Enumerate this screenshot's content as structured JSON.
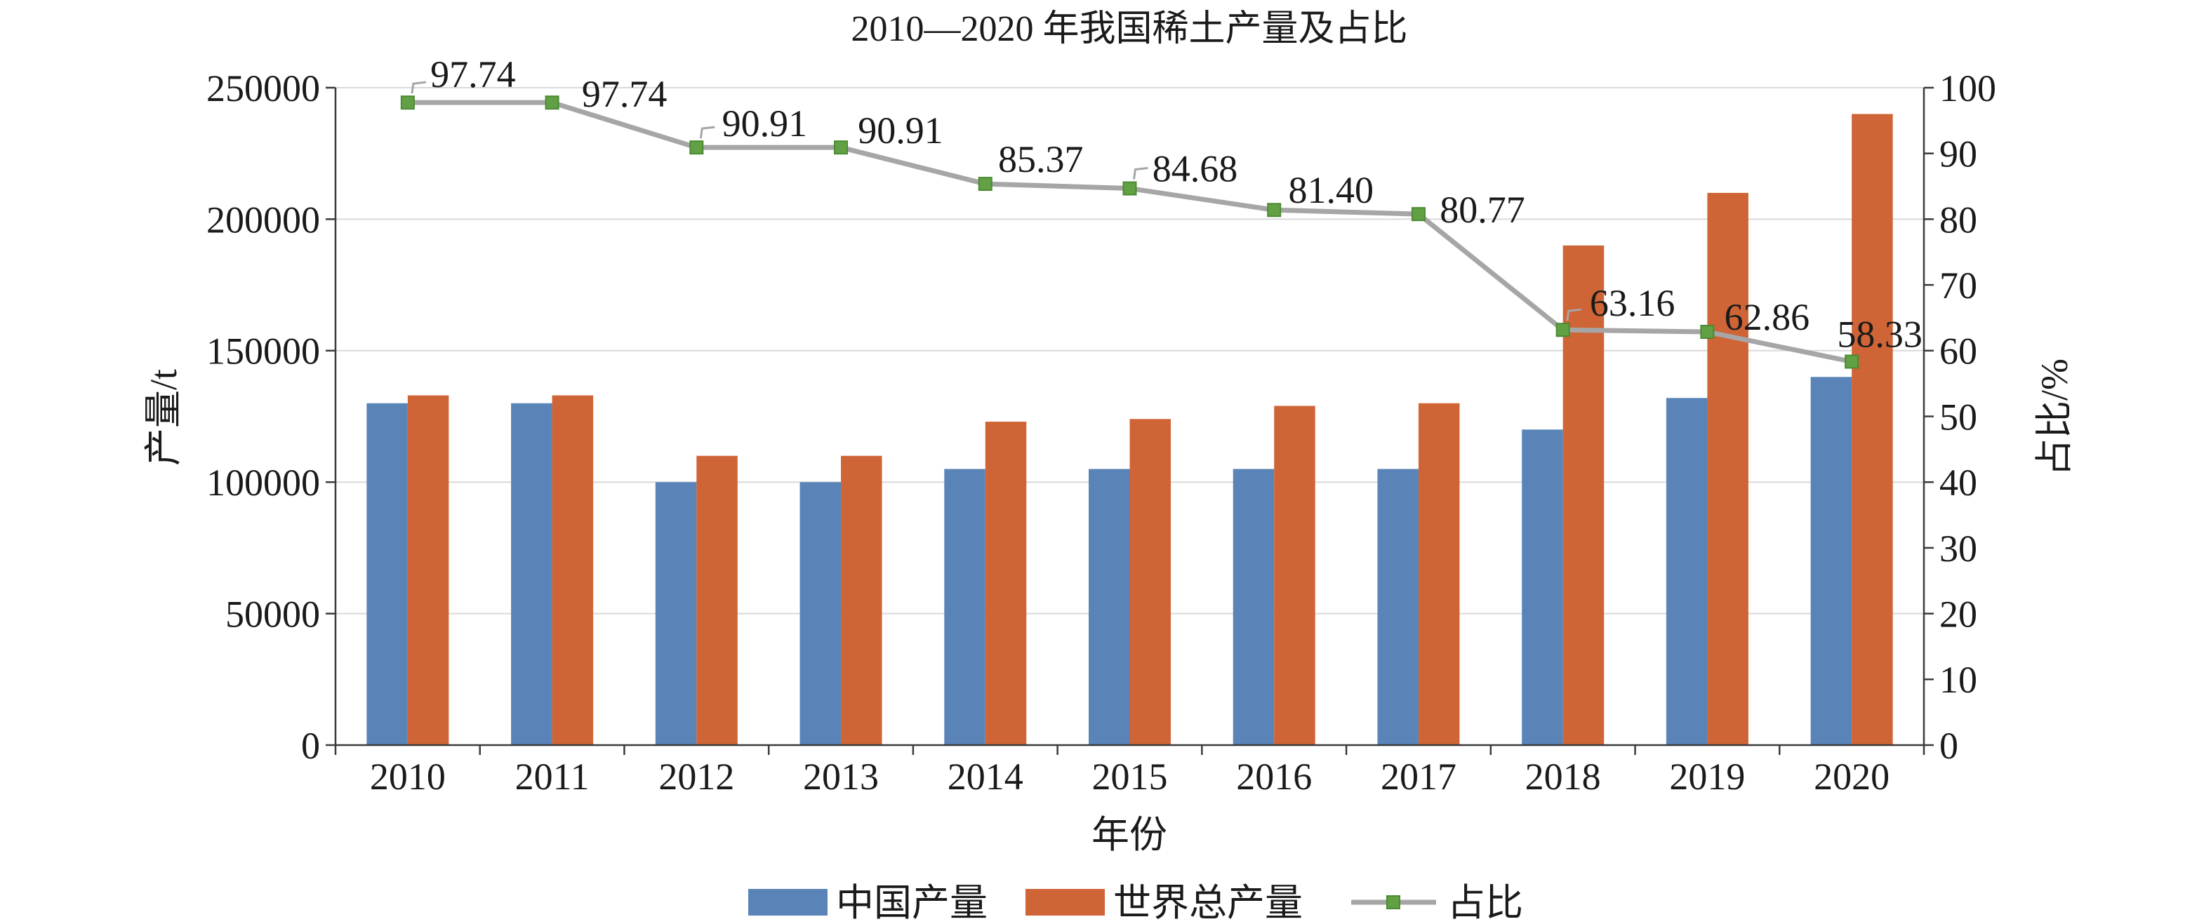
{
  "chart_data": {
    "type": "bar",
    "title": "2010—2020 年我国稀土产量及占比",
    "xlabel": "年份",
    "ylabel": "产量/t",
    "y2label": "占比/%",
    "categories": [
      "2010",
      "2011",
      "2012",
      "2013",
      "2014",
      "2015",
      "2016",
      "2017",
      "2018",
      "2019",
      "2020"
    ],
    "ylim": [
      0,
      250000
    ],
    "yticks": [
      0,
      50000,
      100000,
      150000,
      200000,
      250000
    ],
    "y2lim": [
      0,
      100
    ],
    "y2ticks": [
      0,
      10,
      20,
      30,
      40,
      50,
      60,
      70,
      80,
      90,
      100
    ],
    "grid": true,
    "legend": "bottom",
    "series": [
      {
        "name": "中国产量",
        "type": "bar",
        "axis": "left",
        "color": "#5a84b8",
        "values": [
          130000,
          130000,
          100000,
          100000,
          105000,
          105000,
          105000,
          105000,
          120000,
          132000,
          140000
        ]
      },
      {
        "name": "世界总产量",
        "type": "bar",
        "axis": "left",
        "color": "#cf6437",
        "values": [
          133000,
          133000,
          110000,
          110000,
          123000,
          124000,
          129000,
          130000,
          190000,
          210000,
          240000
        ]
      },
      {
        "name": "占比",
        "type": "line",
        "axis": "right",
        "color": "#a6a6a6",
        "marker": "square",
        "marker_color": "#62a044",
        "values": [
          97.74,
          97.74,
          90.91,
          90.91,
          85.37,
          84.68,
          81.4,
          80.77,
          63.16,
          62.86,
          58.33
        ],
        "labels": [
          "97.74",
          "97.74",
          "90.91",
          "90.91",
          "85.37",
          "84.68",
          "81.40",
          "80.77",
          "63.16",
          "62.86",
          "58.33"
        ]
      }
    ]
  }
}
